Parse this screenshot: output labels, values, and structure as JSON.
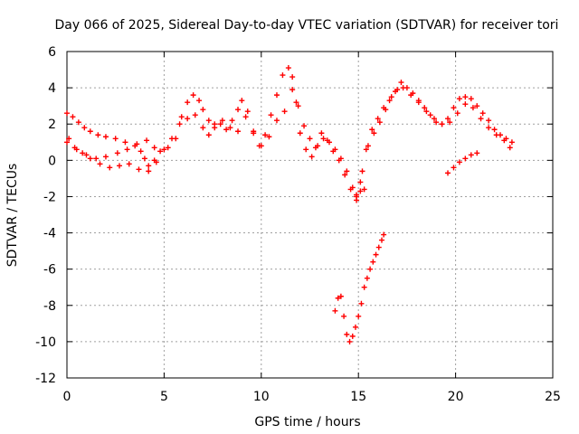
{
  "chart_data": {
    "type": "scatter",
    "title": "Day 066 of 2025, Sidereal Day-to-day VTEC variation (SDTVAR) for receiver tori",
    "xlabel": "GPS time / hours",
    "ylabel": "SDTVAR / TECUs",
    "xlim": [
      0,
      25
    ],
    "ylim": [
      -12,
      6
    ],
    "xticks": [
      0,
      5,
      10,
      15,
      20,
      25
    ],
    "yticks": [
      -12,
      -10,
      -8,
      -6,
      -4,
      -2,
      0,
      2,
      4,
      6
    ],
    "grid": true,
    "marker": "+",
    "color": "#ff0000",
    "series": [
      {
        "x": [
          0.0,
          0.3,
          0.6,
          0.9,
          1.2,
          1.6,
          2.0,
          2.5,
          3.0,
          3.5,
          3.8,
          4.0,
          4.2,
          4.5,
          4.8,
          5.2,
          5.6,
          5.9,
          6.2,
          6.5,
          6.8,
          7.0,
          7.3,
          7.6,
          7.9,
          8.2,
          8.5,
          8.8,
          9.0,
          9.3,
          9.6,
          9.9,
          10.2,
          10.5,
          10.8,
          11.1,
          11.4,
          11.6,
          11.8,
          12.0,
          12.3,
          12.6,
          12.9,
          13.2,
          13.5,
          13.8,
          14.1,
          14.4,
          14.7,
          14.9,
          15.1,
          15.4,
          15.7,
          16.0,
          16.3,
          16.6,
          16.9,
          17.2,
          17.5,
          17.8,
          18.1,
          18.4,
          18.7,
          19.0,
          19.3,
          19.6,
          19.9,
          20.2,
          20.5,
          20.8,
          21.1,
          21.4,
          21.7,
          22.0,
          22.3,
          22.6,
          22.9
        ],
        "y": [
          2.6,
          2.4,
          2.1,
          1.8,
          1.6,
          1.4,
          1.3,
          1.2,
          1.0,
          0.8,
          0.5,
          0.1,
          -0.3,
          0.0,
          0.5,
          0.7,
          1.2,
          2.4,
          3.2,
          3.6,
          3.3,
          2.8,
          2.2,
          1.8,
          2.0,
          1.7,
          2.2,
          2.8,
          3.3,
          2.7,
          1.5,
          0.8,
          1.4,
          2.5,
          3.6,
          4.7,
          5.1,
          4.6,
          3.2,
          1.5,
          0.6,
          0.2,
          0.8,
          1.2,
          1.0,
          0.6,
          0.1,
          -0.6,
          -1.5,
          -2.2,
          -1.2,
          0.6,
          1.7,
          2.3,
          2.9,
          3.3,
          3.8,
          4.3,
          4.0,
          3.7,
          3.3,
          2.9,
          2.5,
          2.1,
          2.0,
          2.3,
          2.9,
          3.4,
          3.5,
          3.4,
          3.0,
          2.6,
          2.2,
          1.7,
          1.4,
          1.2,
          1.0
        ]
      },
      {
        "x": [
          0.0,
          0.4,
          0.8,
          1.2,
          1.7,
          2.2,
          2.7,
          3.2,
          3.7,
          4.2,
          4.6,
          5.0,
          5.4,
          5.8,
          6.2,
          6.6,
          7.0,
          7.3,
          7.6,
          8.0,
          8.4,
          8.8,
          9.2,
          9.6,
          10.0,
          10.4,
          10.8,
          11.2,
          11.6,
          11.9,
          12.2,
          12.5,
          12.8,
          13.1,
          13.4,
          13.7,
          14.0,
          14.3,
          14.6,
          14.9,
          15.2,
          15.5,
          15.8,
          16.1,
          16.4,
          16.7,
          17.0,
          17.3,
          17.7,
          18.1,
          18.5,
          18.9,
          19.3,
          19.7,
          20.1,
          20.5,
          20.9,
          21.3,
          21.7,
          22.1,
          22.5,
          22.8
        ],
        "y": [
          1.0,
          0.7,
          0.4,
          0.1,
          -0.2,
          -0.4,
          -0.3,
          -0.2,
          -0.5,
          -0.6,
          -0.1,
          0.6,
          1.2,
          2.0,
          2.3,
          2.5,
          1.8,
          1.4,
          2.0,
          2.2,
          1.8,
          1.6,
          2.4,
          1.6,
          0.8,
          1.3,
          2.2,
          2.7,
          3.9,
          3.0,
          1.9,
          1.2,
          0.7,
          1.5,
          1.1,
          0.5,
          0.0,
          -0.8,
          -1.6,
          -2.0,
          -0.6,
          0.8,
          1.5,
          2.1,
          2.8,
          3.5,
          3.9,
          4.0,
          3.6,
          3.2,
          2.7,
          2.3,
          2.0,
          2.1,
          2.6,
          3.1,
          2.9,
          2.3,
          1.8,
          1.4,
          1.1,
          0.7
        ]
      },
      {
        "x": [
          0.1,
          0.5,
          1.0,
          1.5,
          2.0,
          2.6,
          3.1,
          3.6,
          4.1,
          4.5,
          14.9,
          15.1,
          15.3,
          19.6,
          19.9,
          20.2,
          20.5,
          20.8,
          21.1
        ],
        "y": [
          1.2,
          0.6,
          0.3,
          0.1,
          0.2,
          0.4,
          0.6,
          0.9,
          1.1,
          0.7,
          -1.9,
          -1.7,
          -1.6,
          -0.7,
          -0.4,
          -0.1,
          0.1,
          0.3,
          0.4
        ]
      },
      {
        "x": [
          13.8,
          13.95,
          14.1,
          14.25,
          14.4,
          14.55,
          14.7,
          14.85,
          15.0,
          15.15,
          15.3,
          15.45,
          15.6,
          15.75,
          15.9,
          16.05,
          16.2,
          16.3
        ],
        "y": [
          -8.3,
          -7.6,
          -7.5,
          -8.6,
          -9.6,
          -10.0,
          -9.7,
          -9.2,
          -8.6,
          -7.9,
          -7.0,
          -6.5,
          -6.0,
          -5.6,
          -5.2,
          -4.8,
          -4.4,
          -4.1
        ]
      }
    ]
  }
}
